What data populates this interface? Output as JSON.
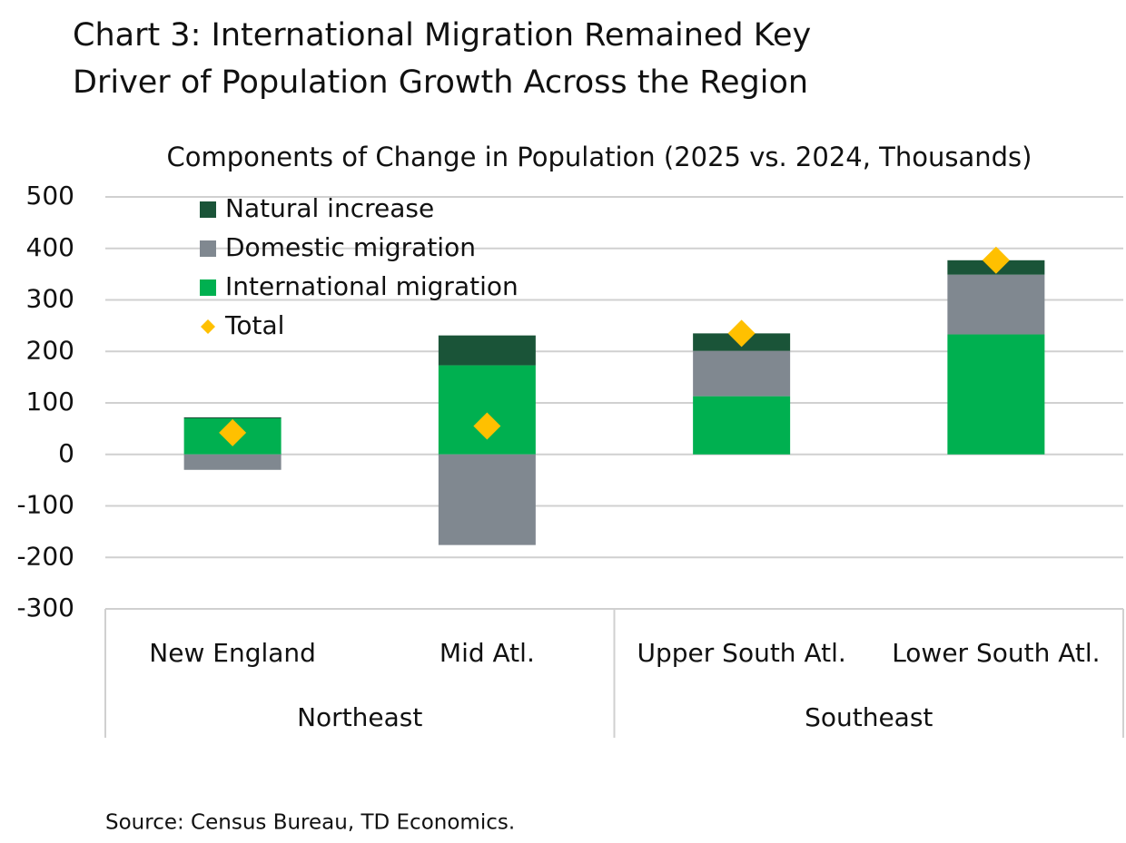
{
  "chart_data": {
    "type": "bar",
    "stacked": true,
    "title": "Chart 3: International Migration Remained Key Driver of Population Growth Across the Region",
    "subtitle": "Components of Change in Population (2025 vs. 2024, Thousands)",
    "categories": [
      "New England",
      "Mid Atl.",
      "Upper South Atl.",
      "Lower South Atl."
    ],
    "groups": [
      {
        "name": "Northeast",
        "categories": [
          "New England",
          "Mid Atl."
        ]
      },
      {
        "name": "Southeast",
        "categories": [
          "Upper South Atl.",
          "Lower South Atl."
        ]
      }
    ],
    "series": [
      {
        "name": "Natural increase",
        "color": "#1a5438",
        "values": [
          2,
          58,
          34,
          28
        ]
      },
      {
        "name": "Domestic migration",
        "color": "#808890",
        "values": [
          -30,
          -176,
          88,
          116
        ]
      },
      {
        "name": "International migration",
        "color": "#00b050",
        "values": [
          70,
          173,
          113,
          233
        ]
      },
      {
        "name": "Total",
        "color": "#ffc000",
        "marker": "diamond",
        "values": [
          42,
          55,
          235,
          377
        ]
      }
    ],
    "ylim": [
      -300,
      500
    ],
    "yticks": [
      -300,
      -200,
      -100,
      0,
      100,
      200,
      300,
      400,
      500
    ],
    "grid": true,
    "legend": "top-left",
    "source": "Source: Census Bureau, TD Economics."
  }
}
